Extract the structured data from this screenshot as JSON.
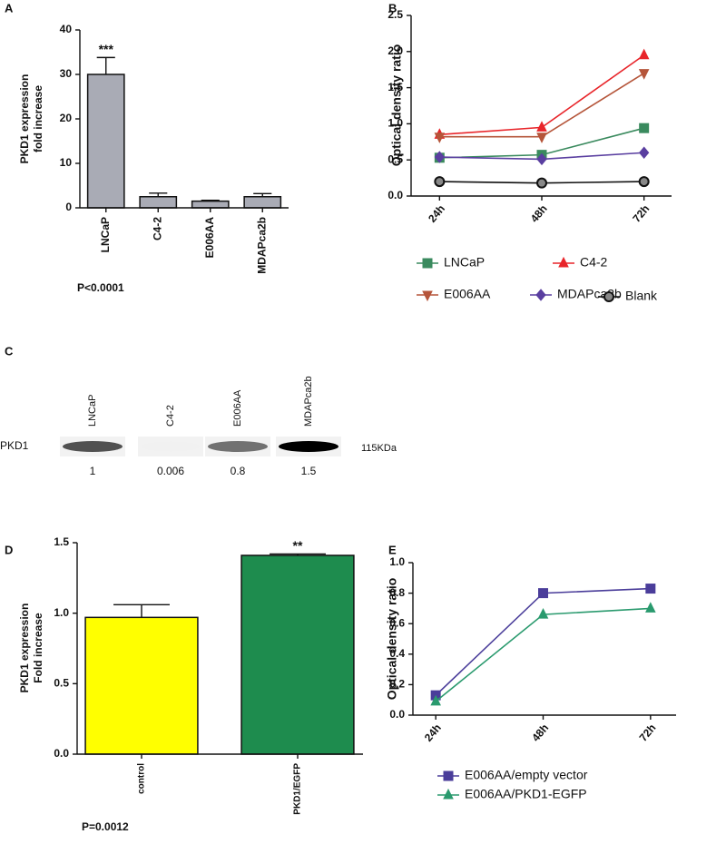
{
  "chart_data": [
    {
      "type": "bar",
      "panel": "A",
      "y_label": [
        "PKD1 expression",
        "fold increase"
      ],
      "categories": [
        "LNCaP",
        "C4-2",
        "E006AA",
        "MDAPca2b"
      ],
      "values": [
        30,
        2.5,
        1.5,
        2.5
      ],
      "errors": [
        3.8,
        0.8,
        0.2,
        0.7
      ],
      "annotations": [
        "***",
        null,
        null,
        null
      ],
      "color": "#a9abb5",
      "ylim": [
        0,
        40
      ],
      "yticks": [
        0,
        10,
        20,
        30,
        40
      ],
      "note": "P<0.0001"
    },
    {
      "type": "line",
      "panel": "B",
      "y_label": "Optical density ratio",
      "categories": [
        "24h",
        "48h",
        "72h"
      ],
      "ylim": [
        0,
        2.5
      ],
      "yticks": [
        {
          "value": 0,
          "label": "0.0"
        },
        0.5,
        {
          "value": 1,
          "label": "1.0"
        },
        1.5,
        {
          "value": 2,
          "label": "2.0"
        },
        2.5
      ],
      "series": [
        {
          "name": "LNCaP",
          "color": "#3a8a5e",
          "marker": "square",
          "values": [
            0.53,
            0.57,
            0.94
          ]
        },
        {
          "name": "C4-2",
          "color": "#e8252a",
          "marker": "triangle",
          "values": [
            0.85,
            0.95,
            1.95
          ]
        },
        {
          "name": "E006AA",
          "color": "#b5553a",
          "marker": "triangle-down",
          "values": [
            0.82,
            0.82,
            1.7
          ]
        },
        {
          "name": "MDAPca2b",
          "color": "#5a3fa0",
          "marker": "diamond",
          "values": [
            0.54,
            0.51,
            0.6
          ]
        },
        {
          "name": "Blank",
          "color": "#111111",
          "marker": "circle",
          "values": [
            0.2,
            0.18,
            0.2
          ]
        }
      ]
    },
    {
      "type": "blot",
      "panel": "C",
      "row_label": "PKD1",
      "size_label": "115KDa",
      "categories": [
        "LNCaP",
        "C4-2",
        "E006AA",
        "MDAPca2b"
      ],
      "values": [
        1,
        0.006,
        0.8,
        1.5
      ]
    },
    {
      "type": "bar",
      "panel": "D",
      "y_label": [
        "PKD1 expression",
        "Fold increase"
      ],
      "categories": [
        "control",
        "PKD1/EGFP"
      ],
      "values": [
        0.97,
        1.41
      ],
      "errors": [
        0.09,
        0.01
      ],
      "annotations": [
        null,
        "**"
      ],
      "colors": [
        "#ffff00",
        "#1e8c4e"
      ],
      "ylim": [
        0,
        1.5
      ],
      "yticks": [
        {
          "value": 0,
          "label": "0.0"
        },
        0.5,
        {
          "value": 1,
          "label": "1.0"
        },
        1.5
      ],
      "note": "P=0.0012"
    },
    {
      "type": "line",
      "panel": "E",
      "y_label": "Optical density ratio",
      "categories": [
        "24h",
        "48h",
        "72h"
      ],
      "ylim": [
        0,
        1
      ],
      "yticks": [
        {
          "value": 0,
          "label": "0.0"
        },
        0.2,
        0.4,
        0.6,
        0.8,
        {
          "value": 1,
          "label": "1.0"
        }
      ],
      "series": [
        {
          "name": "E006AA/empty vector",
          "color": "#4a3d9a",
          "marker": "square",
          "values": [
            0.13,
            0.8,
            0.83
          ]
        },
        {
          "name": "E006AA/PKD1-EGFP",
          "color": "#2a9a6e",
          "marker": "triangle",
          "values": [
            0.09,
            0.66,
            0.7
          ]
        }
      ]
    }
  ]
}
